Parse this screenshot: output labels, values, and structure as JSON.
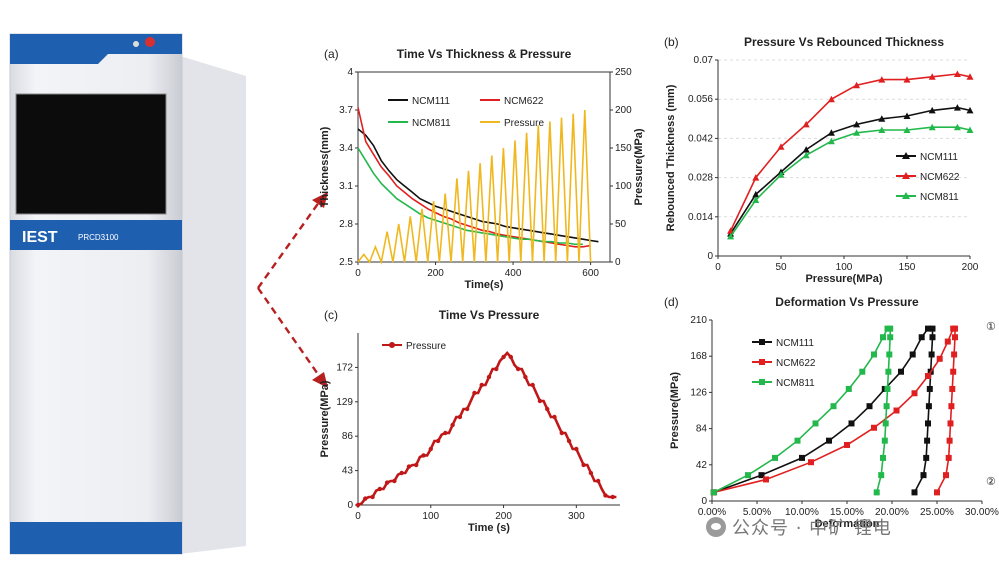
{
  "machine": {
    "brand": "IEST",
    "model": "PRCD3100"
  },
  "watermark": {
    "text": "公众号 · 中矿 锂电"
  },
  "chart_data": [
    {
      "panel": "(a)",
      "type": "line",
      "title": "Time Vs Thickness & Pressure",
      "xlabel": "Time(s)",
      "ylabel": "Thickness(mm)",
      "y2label": "Pressure(MPa)",
      "xlim": [
        0,
        650
      ],
      "ylim": [
        2.5,
        4
      ],
      "y2lim": [
        0,
        250
      ],
      "xticks": [
        0,
        200,
        400,
        600
      ],
      "yticks": [
        "2.5",
        "2.8",
        "3.1",
        "3.4",
        "3.7",
        "4"
      ],
      "y2ticks": [
        0,
        50,
        100,
        150,
        200,
        250
      ],
      "series": [
        {
          "name": "NCM111",
          "color": "#111111",
          "axis": "left",
          "x": [
            0,
            20,
            40,
            60,
            80,
            100,
            120,
            140,
            160,
            180,
            200,
            220,
            240,
            260,
            280,
            300,
            320,
            340,
            360,
            380,
            400,
            420,
            440,
            460,
            480,
            500,
            520,
            540,
            560,
            580,
            600,
            620
          ],
          "y": [
            3.55,
            3.5,
            3.42,
            3.3,
            3.22,
            3.15,
            3.1,
            3.05,
            3.0,
            2.97,
            2.94,
            2.92,
            2.9,
            2.88,
            2.86,
            2.84,
            2.82,
            2.81,
            2.8,
            2.78,
            2.77,
            2.76,
            2.75,
            2.74,
            2.73,
            2.72,
            2.71,
            2.7,
            2.69,
            2.68,
            2.67,
            2.66
          ]
        },
        {
          "name": "NCM622",
          "color": "#e02020",
          "axis": "left",
          "x": [
            0,
            20,
            40,
            60,
            80,
            100,
            120,
            140,
            160,
            180,
            200,
            220,
            240,
            260,
            280,
            300,
            320,
            340,
            360,
            380,
            400,
            420,
            440,
            460,
            480,
            500,
            520,
            540,
            560,
            580,
            600
          ],
          "y": [
            3.72,
            3.45,
            3.35,
            3.25,
            3.18,
            3.1,
            3.05,
            3.0,
            2.96,
            2.92,
            2.89,
            2.86,
            2.84,
            2.81,
            2.79,
            2.77,
            2.75,
            2.74,
            2.72,
            2.71,
            2.7,
            2.69,
            2.68,
            2.67,
            2.66,
            2.65,
            2.64,
            2.63,
            2.62,
            2.62,
            2.63
          ]
        },
        {
          "name": "NCM811",
          "color": "#22b84c",
          "axis": "left",
          "x": [
            0,
            20,
            40,
            60,
            80,
            100,
            120,
            140,
            160,
            180,
            200,
            220,
            240,
            260,
            280,
            300,
            320,
            340,
            360,
            380,
            400,
            420,
            440,
            460,
            480,
            500,
            520,
            540,
            560,
            580
          ],
          "y": [
            3.4,
            3.3,
            3.2,
            3.12,
            3.06,
            3.0,
            2.96,
            2.92,
            2.88,
            2.85,
            2.83,
            2.81,
            2.79,
            2.77,
            2.75,
            2.74,
            2.73,
            2.72,
            2.71,
            2.7,
            2.69,
            2.68,
            2.68,
            2.67,
            2.66,
            2.66,
            2.65,
            2.65,
            2.64,
            2.64
          ]
        },
        {
          "name": "Pressure",
          "color": "#f0b820",
          "axis": "right",
          "x": [
            0,
            15,
            30,
            45,
            60,
            75,
            90,
            105,
            120,
            135,
            150,
            165,
            180,
            195,
            210,
            225,
            240,
            255,
            270,
            285,
            300,
            315,
            330,
            345,
            360,
            375,
            390,
            405,
            420,
            435,
            450,
            465,
            480,
            495,
            510,
            525,
            540,
            555,
            570,
            585,
            600
          ],
          "y": [
            0,
            10,
            0,
            20,
            0,
            40,
            0,
            50,
            0,
            60,
            0,
            70,
            0,
            80,
            0,
            90,
            0,
            110,
            0,
            120,
            0,
            130,
            0,
            140,
            0,
            150,
            0,
            160,
            0,
            170,
            0,
            180,
            0,
            185,
            0,
            190,
            0,
            195,
            0,
            200,
            0
          ]
        }
      ],
      "legend": "top-left"
    },
    {
      "panel": "(b)",
      "type": "line",
      "title": "Pressure Vs Rebounced Thickness",
      "xlabel": "Pressure(MPa)",
      "ylabel": "Rebounced Thickness (mm)",
      "xlim": [
        0,
        200
      ],
      "ylim": [
        0,
        0.07
      ],
      "xticks": [
        0,
        50,
        100,
        150,
        200
      ],
      "yticks": [
        "0",
        "0.014",
        "0.028",
        "0.042",
        "0.056",
        "0.07"
      ],
      "series": [
        {
          "name": "NCM111",
          "color": "#111111",
          "x": [
            10,
            30,
            50,
            70,
            90,
            110,
            130,
            150,
            170,
            190,
            200
          ],
          "y": [
            0.008,
            0.022,
            0.03,
            0.038,
            0.044,
            0.047,
            0.049,
            0.05,
            0.052,
            0.053,
            0.052
          ]
        },
        {
          "name": "NCM622",
          "color": "#e02020",
          "x": [
            10,
            30,
            50,
            70,
            90,
            110,
            130,
            150,
            170,
            190,
            200
          ],
          "y": [
            0.009,
            0.028,
            0.039,
            0.047,
            0.056,
            0.061,
            0.063,
            0.063,
            0.064,
            0.065,
            0.064
          ]
        },
        {
          "name": "NCM811",
          "color": "#22b84c",
          "x": [
            10,
            30,
            50,
            70,
            90,
            110,
            130,
            150,
            170,
            190,
            200
          ],
          "y": [
            0.007,
            0.02,
            0.029,
            0.036,
            0.041,
            0.044,
            0.045,
            0.045,
            0.046,
            0.046,
            0.045
          ]
        }
      ],
      "legend": "right"
    },
    {
      "panel": "(c)",
      "type": "line",
      "title": "Time Vs Pressure",
      "xlabel": "Time (s)",
      "ylabel": "Pressure(MPa)",
      "xlim": [
        0,
        360
      ],
      "ylim": [
        0,
        215
      ],
      "xticks": [
        0,
        100,
        200,
        300
      ],
      "yticks": [
        "0",
        "43",
        "86",
        "129",
        "172"
      ],
      "series": [
        {
          "name": "Pressure",
          "color": "#c01818",
          "x": [
            0,
            5,
            10,
            15,
            20,
            25,
            30,
            35,
            40,
            45,
            50,
            55,
            60,
            65,
            70,
            75,
            80,
            85,
            90,
            95,
            100,
            105,
            110,
            115,
            120,
            125,
            130,
            135,
            140,
            145,
            150,
            155,
            160,
            165,
            170,
            175,
            180,
            185,
            190,
            195,
            200,
            205,
            210,
            215,
            220,
            225,
            230,
            235,
            240,
            245,
            250,
            255,
            260,
            265,
            270,
            275,
            280,
            285,
            290,
            295,
            300,
            305,
            310,
            315,
            320,
            325,
            330,
            335,
            340,
            345,
            350,
            355
          ],
          "y": [
            0,
            2,
            8,
            10,
            10,
            18,
            20,
            20,
            28,
            30,
            30,
            38,
            40,
            40,
            48,
            50,
            50,
            60,
            62,
            62,
            70,
            80,
            80,
            88,
            90,
            90,
            100,
            110,
            110,
            120,
            120,
            130,
            140,
            140,
            150,
            150,
            160,
            170,
            170,
            180,
            185,
            190,
            185,
            175,
            170,
            170,
            160,
            150,
            150,
            140,
            130,
            130,
            120,
            110,
            110,
            100,
            90,
            90,
            80,
            70,
            70,
            60,
            50,
            50,
            40,
            30,
            30,
            20,
            12,
            10,
            10,
            10
          ]
        }
      ],
      "legend": "top-left"
    },
    {
      "panel": "(d)",
      "type": "line",
      "title": "Deformation Vs Pressure",
      "xlabel": "Deformation",
      "ylabel": "Pressure(MPa)",
      "xlim": [
        0,
        30
      ],
      "ylim": [
        0,
        210
      ],
      "xticks": [
        "0.00%",
        "5.00%",
        "10.00%",
        "15.00%",
        "20.00%",
        "25.00%",
        "30.00%"
      ],
      "yticks": [
        "0",
        "42",
        "84",
        "126",
        "168",
        "210"
      ],
      "annotations": [
        "①",
        "②"
      ],
      "series": [
        {
          "name": "NCM111",
          "color": "#111111",
          "x": [
            0.2,
            5.5,
            10,
            13,
            15.5,
            17.5,
            19.2,
            21,
            22.3,
            23.3,
            24,
            24.5,
            24.5,
            24.4,
            24.3,
            24.2,
            24.1,
            24.0,
            23.9,
            23.8,
            23.5,
            22.5
          ],
          "y": [
            10,
            30,
            50,
            70,
            90,
            110,
            130,
            150,
            170,
            190,
            200,
            200,
            190,
            170,
            150,
            130,
            110,
            90,
            70,
            50,
            30,
            10
          ]
        },
        {
          "name": "NCM622",
          "color": "#e02020",
          "x": [
            0.2,
            6,
            11,
            15,
            18,
            20.5,
            22.5,
            24,
            25.3,
            26.2,
            26.8,
            27.0,
            27.0,
            26.9,
            26.8,
            26.7,
            26.6,
            26.5,
            26.4,
            26.3,
            26.0,
            25.0
          ],
          "y": [
            10,
            25,
            45,
            65,
            85,
            105,
            125,
            145,
            165,
            185,
            200,
            200,
            190,
            170,
            150,
            130,
            110,
            90,
            70,
            50,
            30,
            10
          ]
        },
        {
          "name": "NCM811",
          "color": "#22b84c",
          "x": [
            0.2,
            4,
            7,
            9.5,
            11.5,
            13.5,
            15.2,
            16.7,
            18,
            19,
            19.5,
            19.8,
            19.8,
            19.7,
            19.6,
            19.5,
            19.4,
            19.3,
            19.2,
            19.0,
            18.8,
            18.3
          ],
          "y": [
            10,
            30,
            50,
            70,
            90,
            110,
            130,
            150,
            170,
            190,
            200,
            200,
            190,
            170,
            150,
            130,
            110,
            90,
            70,
            50,
            30,
            10
          ]
        }
      ],
      "legend": "top-left"
    }
  ]
}
